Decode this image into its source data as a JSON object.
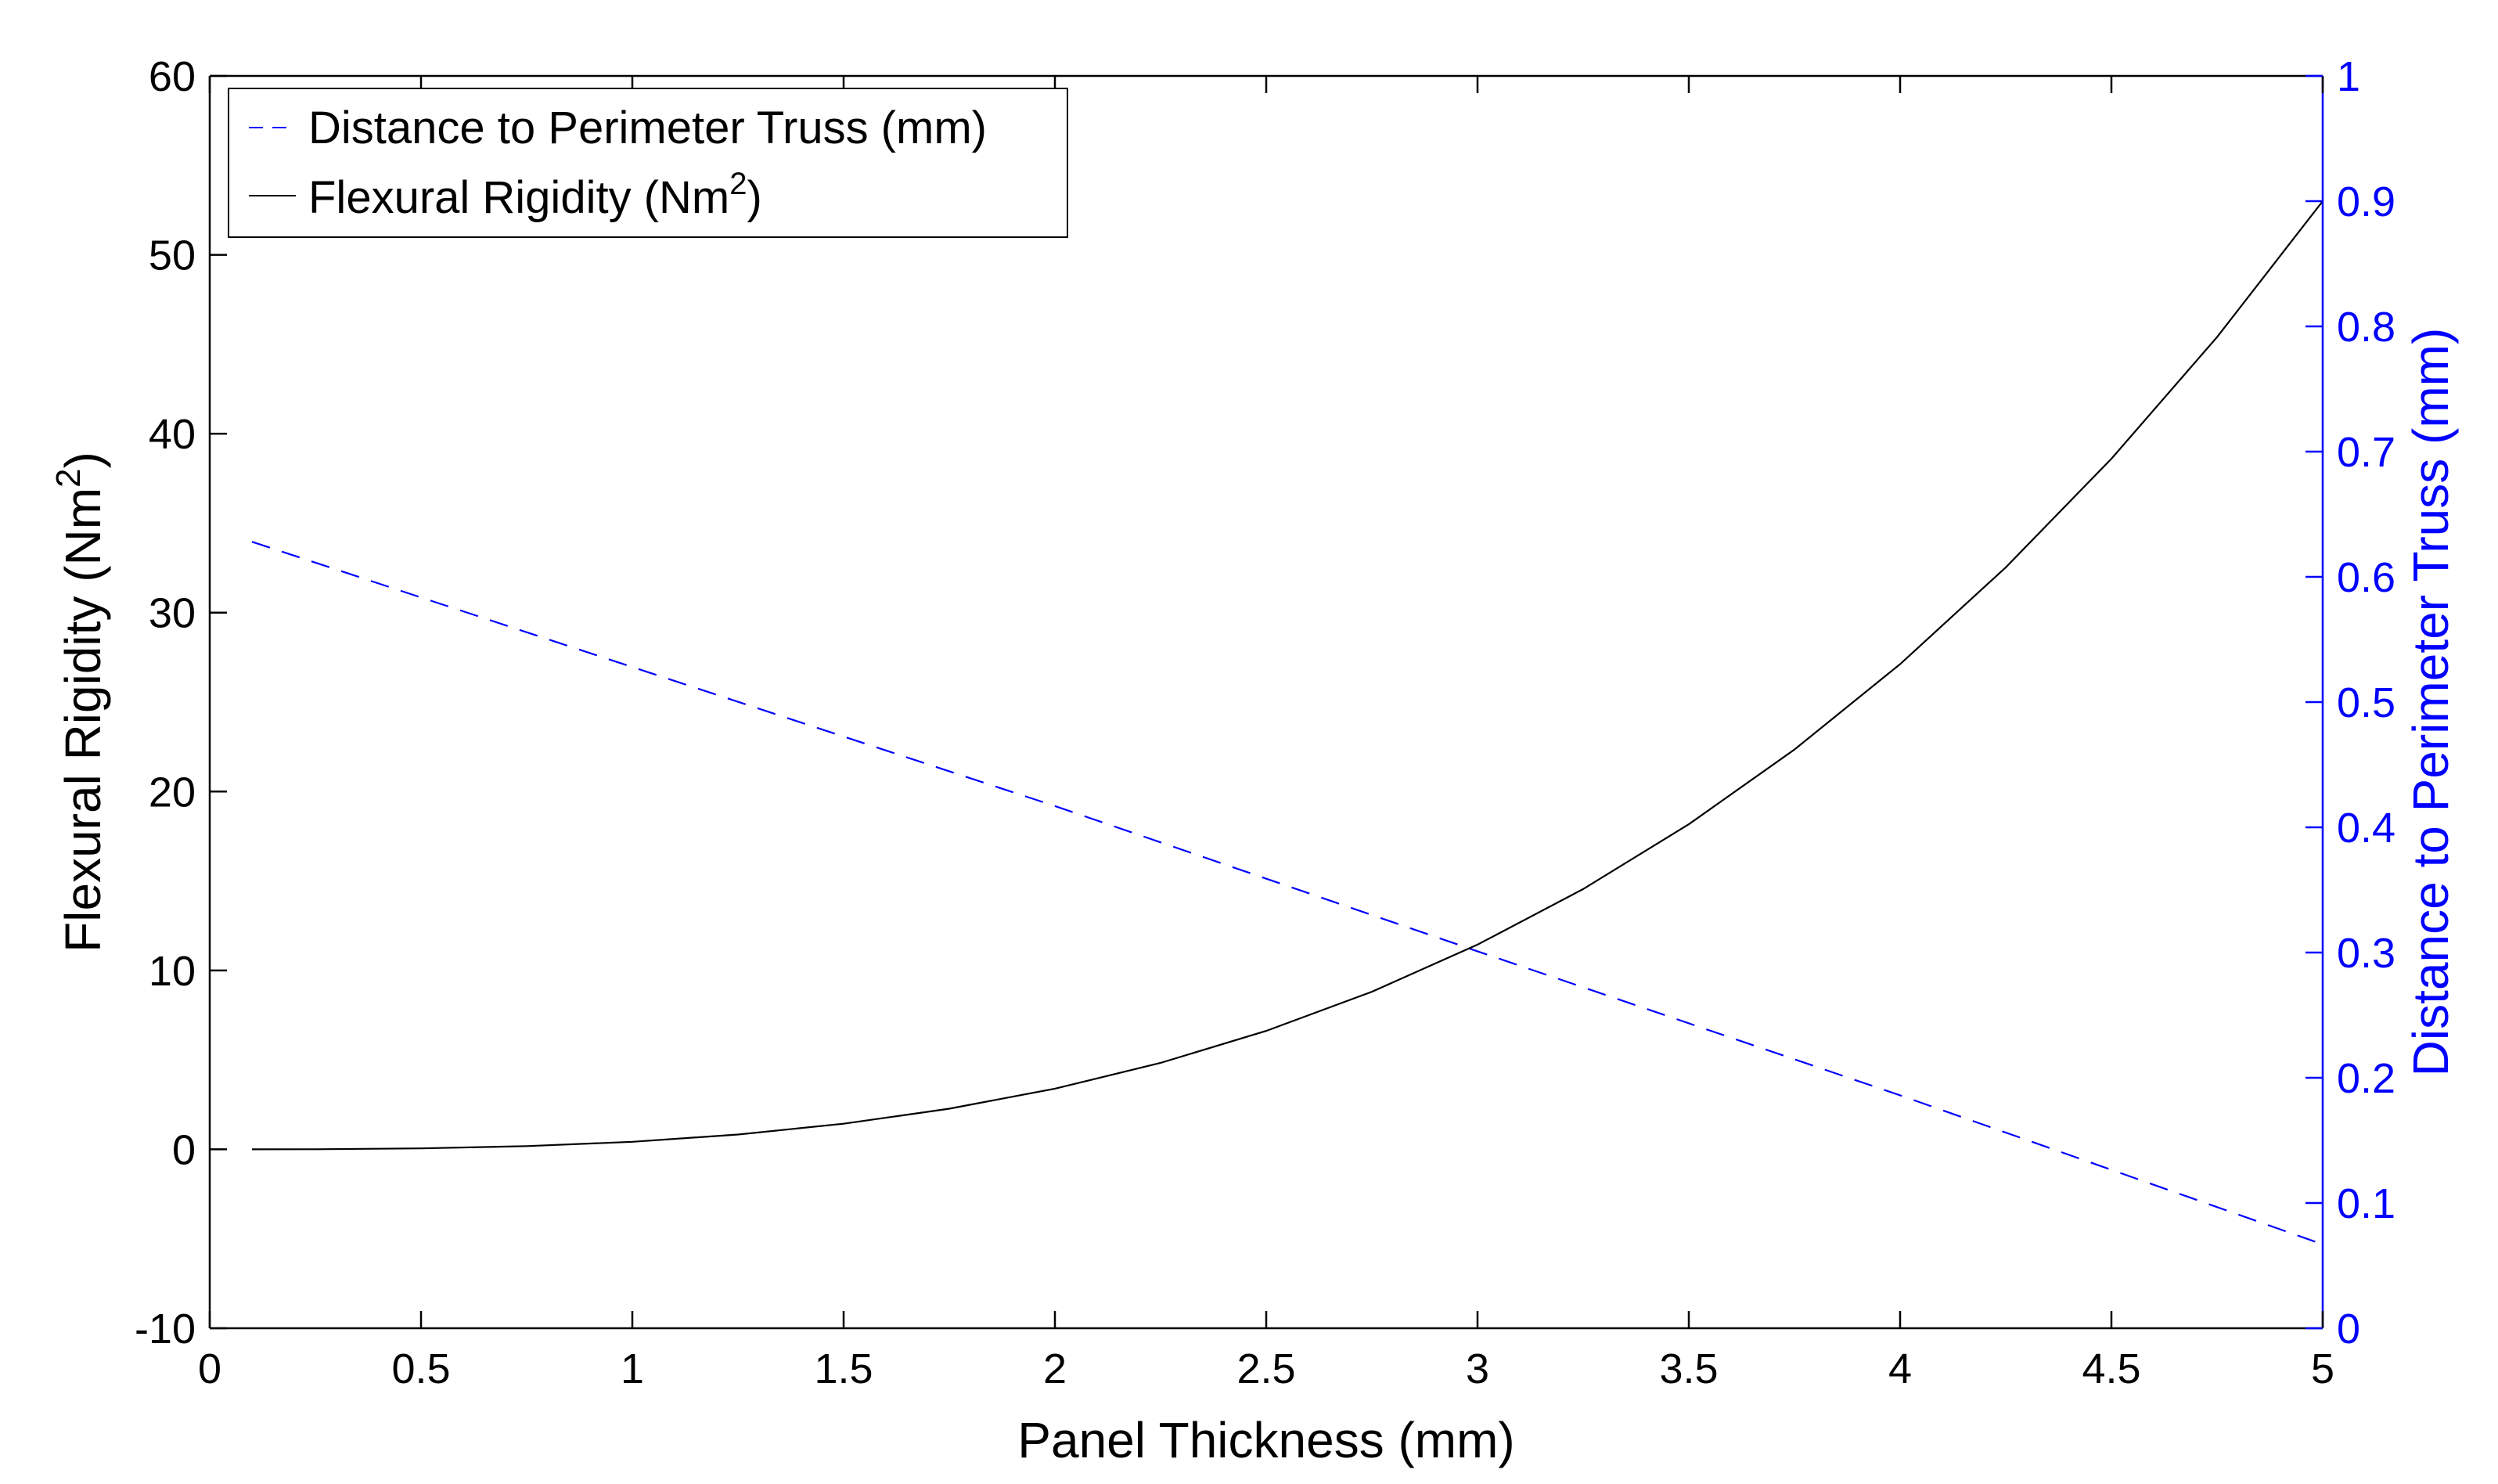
{
  "chart_data": {
    "type": "line",
    "xlabel": "Panel Thickness (mm)",
    "ylabel_left": {
      "text": "Flexural Rigidity (Nm",
      "sup": "2",
      "tail": ")"
    },
    "ylabel_right": "Distance to Perimeter Truss (mm)",
    "xlim": [
      0,
      5
    ],
    "ylim_left": [
      -10,
      60
    ],
    "ylim_right": [
      0,
      1
    ],
    "x_ticks": [
      "0",
      "0.5",
      "1",
      "1.5",
      "2",
      "2.5",
      "3",
      "3.5",
      "4",
      "4.5",
      "5"
    ],
    "y_left_ticks": [
      "-10",
      "0",
      "10",
      "20",
      "30",
      "40",
      "50",
      "60"
    ],
    "y_right_ticks": [
      "0",
      "0.1",
      "0.2",
      "0.3",
      "0.4",
      "0.5",
      "0.6",
      "0.7",
      "0.8",
      "0.9",
      "1"
    ],
    "grid": false,
    "legend_position": "top-left",
    "colors": {
      "flexural": "#000000",
      "distance": "#0000ff",
      "right_axis": "#0000ff"
    },
    "series": [
      {
        "name": "Distance to Perimeter Truss (mm)",
        "axis": "right",
        "style": "dashed",
        "x": [
          0.1,
          1.0,
          2.0,
          3.0,
          4.0,
          5.0
        ],
        "y": [
          0.628,
          0.528,
          0.417,
          0.301,
          0.186,
          0.067
        ]
      },
      {
        "name": "Flexural Rigidity (Nm",
        "name_sup": "2",
        "name_tail": ")",
        "axis": "left",
        "style": "solid",
        "x": [
          0.1,
          0.25,
          0.5,
          0.75,
          1.0,
          1.25,
          1.5,
          1.75,
          2.0,
          2.25,
          2.5,
          2.75,
          3.0,
          3.25,
          3.5,
          3.75,
          4.0,
          4.25,
          4.5,
          4.75,
          5.0
        ],
        "y": [
          0.0004,
          0.007,
          0.053,
          0.18,
          0.42,
          0.83,
          1.43,
          2.27,
          3.39,
          4.83,
          6.62,
          8.81,
          11.44,
          14.55,
          18.17,
          22.35,
          27.12,
          32.53,
          38.6,
          45.4,
          53.0
        ]
      }
    ]
  }
}
